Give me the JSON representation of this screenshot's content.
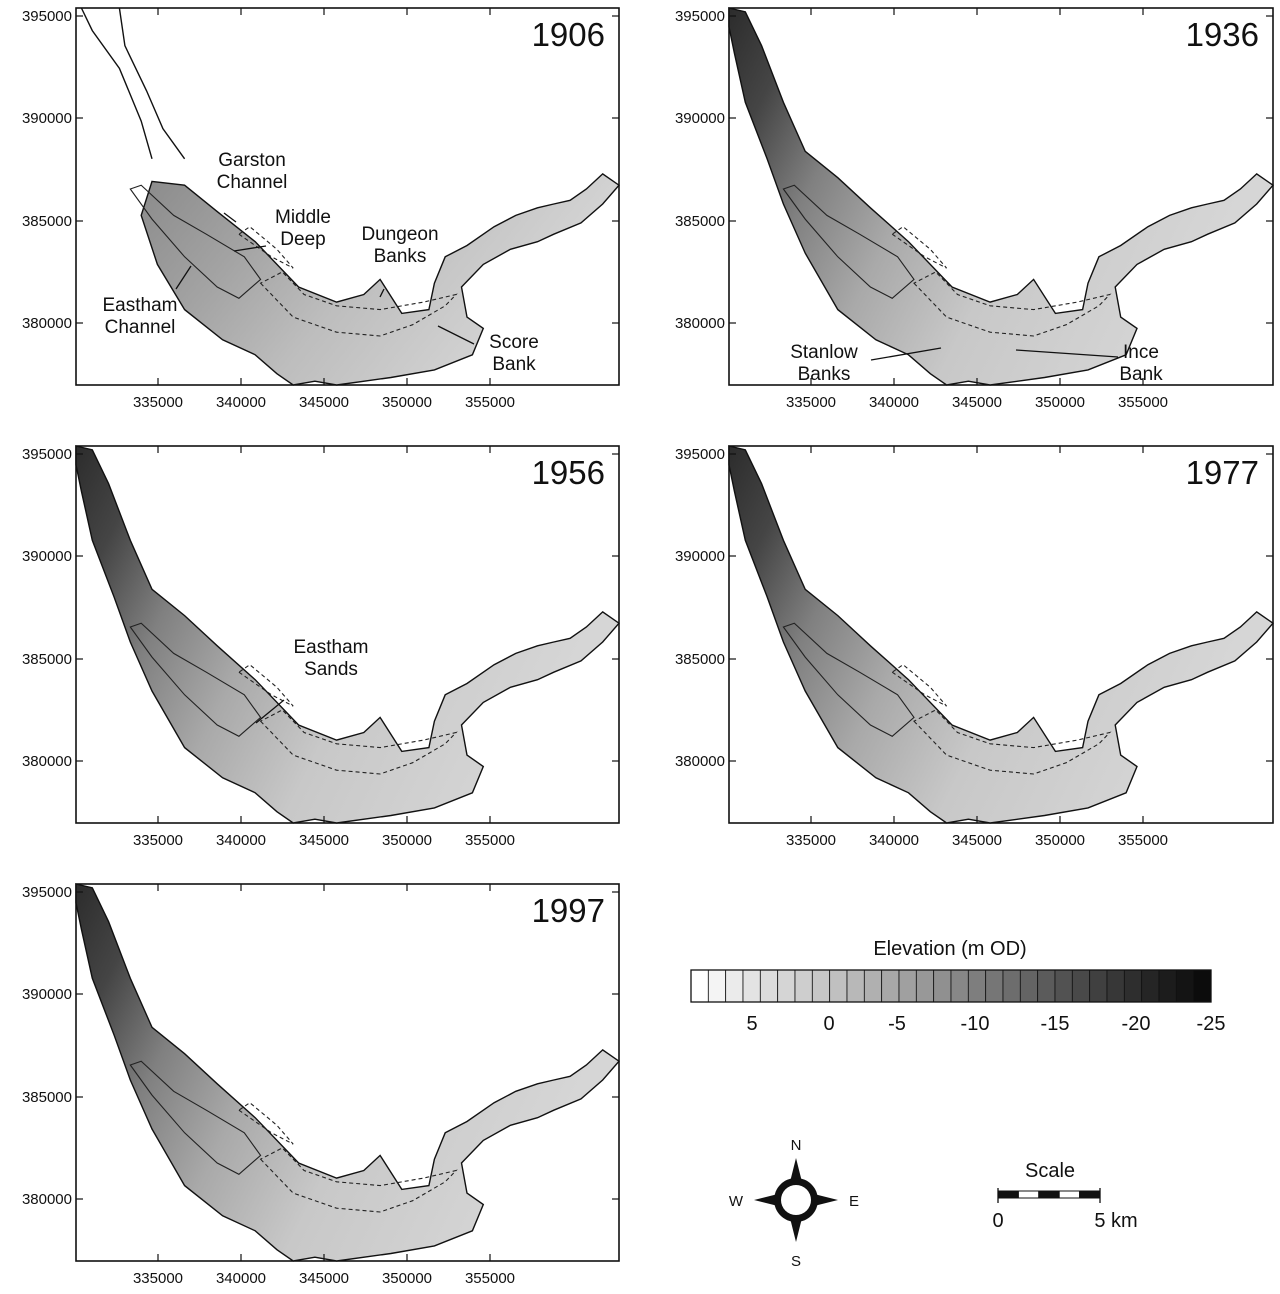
{
  "maps": [
    {
      "year": "1906",
      "x_ticks": [
        "335000",
        "340000",
        "345000",
        "350000",
        "355000"
      ],
      "y_ticks": [
        "395000",
        "390000",
        "385000",
        "380000"
      ],
      "annotations": [
        {
          "id": "garston-channel",
          "lines": [
            "Garston",
            "Channel"
          ]
        },
        {
          "id": "middle-deep",
          "lines": [
            "Middle",
            "Deep"
          ]
        },
        {
          "id": "dungeon-banks",
          "lines": [
            "Dungeon",
            "Banks"
          ]
        },
        {
          "id": "eastham-channel",
          "lines": [
            "Eastham",
            "Channel"
          ]
        },
        {
          "id": "score-bank",
          "lines": [
            "Score",
            "Bank"
          ]
        }
      ]
    },
    {
      "year": "1936",
      "x_ticks": [
        "335000",
        "340000",
        "345000",
        "350000",
        "355000"
      ],
      "y_ticks": [
        "395000",
        "390000",
        "385000",
        "380000"
      ],
      "annotations": [
        {
          "id": "stanlow-banks",
          "lines": [
            "Stanlow",
            "Banks"
          ]
        },
        {
          "id": "ince-bank",
          "lines": [
            "Ince",
            "Bank"
          ]
        }
      ]
    },
    {
      "year": "1956",
      "x_ticks": [
        "335000",
        "340000",
        "345000",
        "350000",
        "355000"
      ],
      "y_ticks": [
        "395000",
        "390000",
        "385000",
        "380000"
      ],
      "annotations": [
        {
          "id": "eastham-sands",
          "lines": [
            "Eastham",
            "Sands"
          ]
        }
      ]
    },
    {
      "year": "1977",
      "x_ticks": [
        "335000",
        "340000",
        "345000",
        "350000",
        "355000"
      ],
      "y_ticks": [
        "395000",
        "390000",
        "385000",
        "380000"
      ],
      "annotations": []
    },
    {
      "year": "1997",
      "x_ticks": [
        "335000",
        "340000",
        "345000",
        "350000",
        "355000"
      ],
      "y_ticks": [
        "395000",
        "390000",
        "385000",
        "380000"
      ],
      "annotations": []
    }
  ],
  "legend": {
    "title": "Elevation (m OD)",
    "tick_labels": [
      "5",
      "0",
      "-5",
      "-10",
      "-15",
      "-20",
      "-25"
    ],
    "swatch_colors": [
      "#ffffff",
      "#f4f4f4",
      "#ebebeb",
      "#e3e3e3",
      "#dcdcdc",
      "#d5d5d5",
      "#cecece",
      "#c7c7c7",
      "#c0c0c0",
      "#b8b8b8",
      "#b0b0b0",
      "#a8a8a8",
      "#a0a0a0",
      "#989898",
      "#909090",
      "#878787",
      "#7e7e7e",
      "#767676",
      "#6d6d6d",
      "#646464",
      "#5b5b5b",
      "#525252",
      "#494949",
      "#404040",
      "#373737",
      "#2e2e2e",
      "#252525",
      "#1c1c1c",
      "#141414",
      "#0c0c0c"
    ]
  },
  "compass": {
    "north": "N",
    "south": "S",
    "east": "E",
    "west": "W"
  },
  "scale_bar": {
    "title": "Scale",
    "start_label": "0",
    "end_label": "5 km"
  },
  "colors": {
    "land": "#ffffff",
    "channel_dark": "#2a2a2a",
    "sand_light": "#d9d9d9",
    "outline": "#111111"
  }
}
